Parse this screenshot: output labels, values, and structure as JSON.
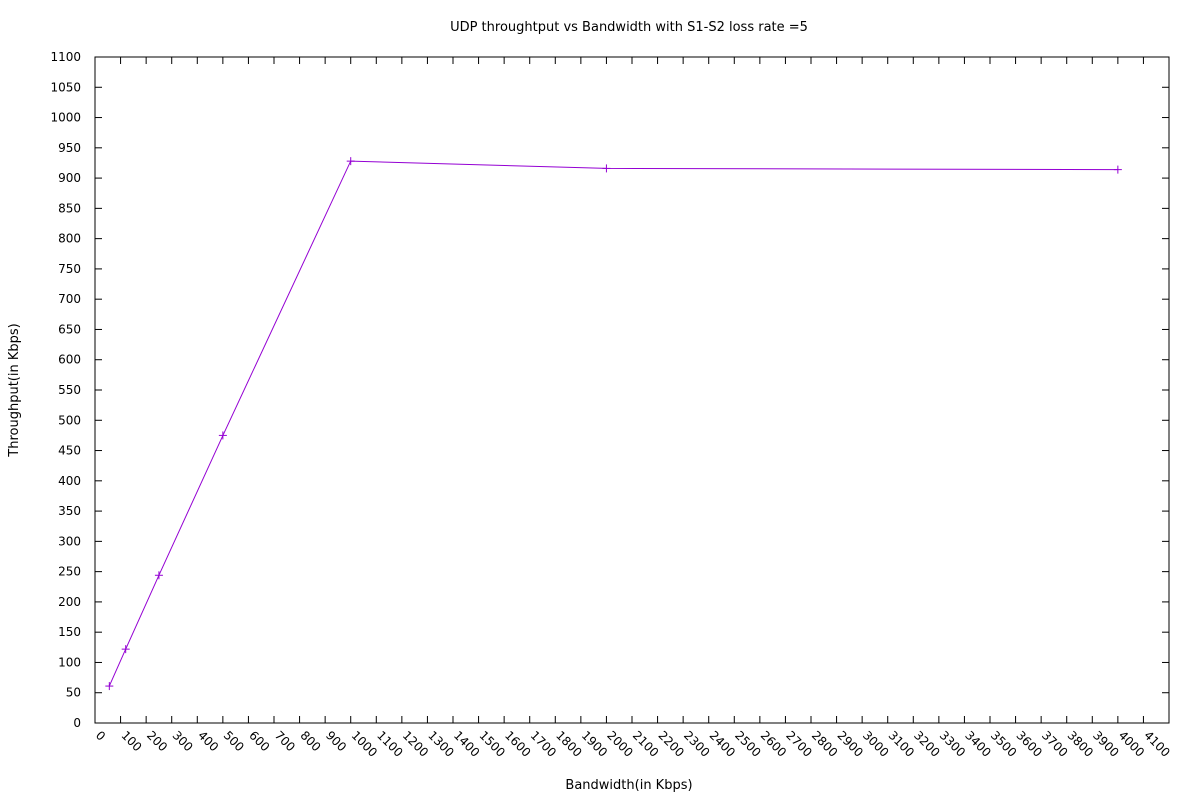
{
  "chart_data": {
    "type": "line",
    "title": "UDP throughtput vs Bandwidth with S1-S2 loss rate =5",
    "xlabel": "Bandwidth(in Kbps)",
    "ylabel": "Throughput(in Kbps)",
    "xlim": [
      0,
      4200
    ],
    "ylim": [
      0,
      1100
    ],
    "xticks": [
      0,
      100,
      200,
      300,
      400,
      500,
      600,
      700,
      800,
      900,
      1000,
      1100,
      1200,
      1300,
      1400,
      1500,
      1600,
      1700,
      1800,
      1900,
      2000,
      2100,
      2200,
      2300,
      2400,
      2500,
      2600,
      2700,
      2800,
      2900,
      3000,
      3100,
      3200,
      3300,
      3400,
      3500,
      3600,
      3700,
      3800,
      3900,
      4000,
      4100
    ],
    "yticks": [
      0,
      50,
      100,
      150,
      200,
      250,
      300,
      350,
      400,
      450,
      500,
      550,
      600,
      650,
      700,
      750,
      800,
      850,
      900,
      950,
      1000,
      1050,
      1100
    ],
    "grid": false,
    "legend": "none",
    "series": [
      {
        "x": [
          56,
          120,
          250,
          500,
          1000,
          2000,
          4000
        ],
        "y": [
          61,
          122,
          244,
          475,
          928,
          916,
          914
        ],
        "color": "#9400d3",
        "marker": "plus"
      }
    ]
  }
}
